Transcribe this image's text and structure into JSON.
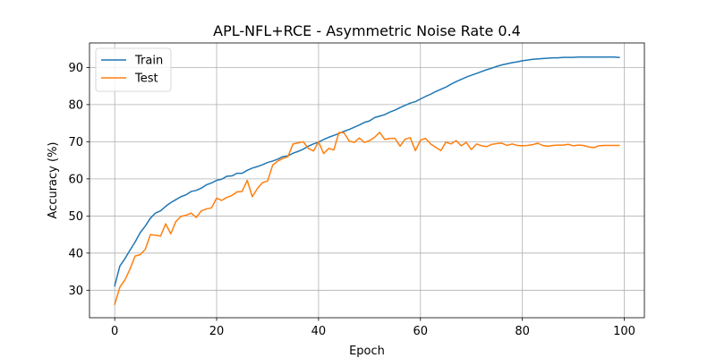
{
  "chart_data": {
    "type": "line",
    "title": "APL-NFL+RCE - Asymmetric Noise Rate 0.4",
    "xlabel": "Epoch",
    "ylabel": "Accuracy (%)",
    "xlim": [
      -4.95,
      103.95
    ],
    "ylim": [
      22.6,
      96.6
    ],
    "xticks": [
      0,
      20,
      40,
      60,
      80,
      100
    ],
    "yticks": [
      30,
      40,
      50,
      60,
      70,
      80,
      90
    ],
    "grid": true,
    "legend_position": "top-left",
    "x": [
      0,
      1,
      2,
      3,
      4,
      5,
      6,
      7,
      8,
      9,
      10,
      11,
      12,
      13,
      14,
      15,
      16,
      17,
      18,
      19,
      20,
      21,
      22,
      23,
      24,
      25,
      26,
      27,
      28,
      29,
      30,
      31,
      32,
      33,
      34,
      35,
      36,
      37,
      38,
      39,
      40,
      41,
      42,
      43,
      44,
      45,
      46,
      47,
      48,
      49,
      50,
      51,
      52,
      53,
      54,
      55,
      56,
      57,
      58,
      59,
      60,
      61,
      62,
      63,
      64,
      65,
      66,
      67,
      68,
      69,
      70,
      71,
      72,
      73,
      74,
      75,
      76,
      77,
      78,
      79,
      80,
      81,
      82,
      83,
      84,
      85,
      86,
      87,
      88,
      89,
      90,
      91,
      92,
      93,
      94,
      95,
      96,
      97,
      98,
      99
    ],
    "series": [
      {
        "name": "Train",
        "color": "#1f77b4",
        "values": [
          31.2,
          36.5,
          38.5,
          40.8,
          43.0,
          45.5,
          47.3,
          49.4,
          50.8,
          51.4,
          52.6,
          53.6,
          54.4,
          55.2,
          55.7,
          56.6,
          56.9,
          57.5,
          58.4,
          58.9,
          59.6,
          59.9,
          60.7,
          60.8,
          61.5,
          61.5,
          62.3,
          62.9,
          63.3,
          63.8,
          64.4,
          64.8,
          65.3,
          66.0,
          66.2,
          66.9,
          67.4,
          68.0,
          68.8,
          69.4,
          69.9,
          70.6,
          71.2,
          71.7,
          72.2,
          72.8,
          73.3,
          73.9,
          74.5,
          75.2,
          75.6,
          76.5,
          76.9,
          77.3,
          78.0,
          78.5,
          79.2,
          79.8,
          80.4,
          80.8,
          81.5,
          82.2,
          82.8,
          83.5,
          84.1,
          84.7,
          85.5,
          86.2,
          86.8,
          87.4,
          87.9,
          88.4,
          88.9,
          89.4,
          89.8,
          90.3,
          90.7,
          91.0,
          91.3,
          91.5,
          91.8,
          92.0,
          92.2,
          92.3,
          92.4,
          92.5,
          92.6,
          92.6,
          92.7,
          92.7,
          92.7,
          92.8,
          92.8,
          92.8,
          92.8,
          92.8,
          92.8,
          92.8,
          92.8,
          92.7
        ]
      },
      {
        "name": "Test",
        "color": "#ff7f0e",
        "values": [
          26.2,
          30.8,
          32.8,
          35.7,
          39.2,
          39.6,
          41.0,
          45.0,
          44.8,
          44.6,
          47.9,
          45.2,
          48.5,
          49.9,
          50.2,
          50.8,
          49.6,
          51.4,
          51.9,
          52.2,
          54.8,
          54.2,
          55.0,
          55.5,
          56.5,
          56.6,
          59.6,
          55.2,
          57.4,
          59.0,
          59.4,
          63.7,
          64.8,
          65.5,
          66.0,
          69.4,
          69.7,
          70.0,
          68.2,
          67.5,
          70.0,
          66.8,
          68.2,
          67.8,
          72.5,
          72.4,
          70.2,
          69.8,
          71.0,
          69.8,
          70.3,
          71.2,
          72.5,
          70.6,
          70.9,
          70.9,
          68.8,
          70.7,
          71.1,
          67.6,
          70.4,
          70.9,
          69.4,
          68.5,
          67.6,
          69.9,
          69.4,
          70.3,
          68.9,
          69.8,
          67.9,
          69.4,
          68.9,
          68.7,
          69.3,
          69.5,
          69.6,
          69.0,
          69.4,
          69.0,
          68.9,
          69.0,
          69.2,
          69.6,
          69.0,
          68.8,
          69.0,
          69.1,
          69.1,
          69.3,
          68.9,
          69.1,
          69.0,
          68.6,
          68.4,
          68.9,
          69.0,
          69.0,
          69.0,
          69.0
        ]
      }
    ]
  }
}
